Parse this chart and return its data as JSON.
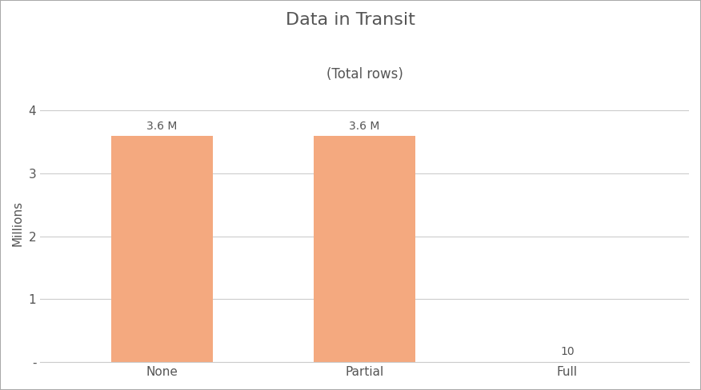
{
  "title": "Data in Transit",
  "subtitle": "(Total rows)",
  "categories": [
    "None",
    "Partial",
    "Full"
  ],
  "values": [
    3600000,
    3600000,
    10
  ],
  "bar_color": "#F4A97F",
  "bar_labels": [
    "3.6 M",
    "3.6 M",
    "10"
  ],
  "ylabel": "Millions",
  "yticks": [
    0,
    1000000,
    2000000,
    3000000,
    4000000
  ],
  "ytick_labels": [
    "-",
    "1",
    "2",
    "3",
    "4"
  ],
  "ylim": [
    0,
    4400000
  ],
  "background_color": "#ffffff",
  "grid_color": "#cccccc",
  "title_fontsize": 16,
  "subtitle_fontsize": 12,
  "label_fontsize": 11,
  "tick_fontsize": 11,
  "bar_label_fontsize": 10,
  "border_color": "#aaaaaa"
}
